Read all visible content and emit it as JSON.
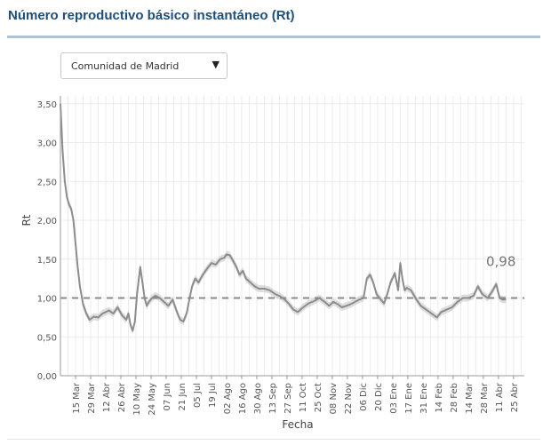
{
  "header": {
    "title": "Número reproductivo básico instantáneo (Rt)"
  },
  "region_select": {
    "selected": "Comunidad de Madrid",
    "arrow_icon": "triangle-down-icon"
  },
  "colors": {
    "title": "#1f4e79",
    "line": "#8c8c8c",
    "band": "#d0d0d0",
    "reference": "#8a8a8a",
    "grid": "#ececec"
  },
  "chart_data": {
    "type": "line",
    "xlabel": "Fecha",
    "ylabel": "Rt",
    "x_range": [
      "2020-03-01",
      "2021-05-05"
    ],
    "ylim": [
      0,
      3.6
    ],
    "yticks": [
      0,
      0.5,
      1,
      1.5,
      2,
      2.5,
      3,
      3.5
    ],
    "ytick_labels": [
      "0,00",
      "0,50",
      "1,00",
      "1,50",
      "2,00",
      "2,50",
      "3,00",
      "3,50"
    ],
    "xticks": [
      "2020-03-15",
      "2020-03-29",
      "2020-04-12",
      "2020-04-26",
      "2020-05-10",
      "2020-05-24",
      "2020-06-07",
      "2020-06-21",
      "2020-07-05",
      "2020-07-19",
      "2020-08-02",
      "2020-08-16",
      "2020-08-30",
      "2020-09-13",
      "2020-09-27",
      "2020-10-11",
      "2020-10-25",
      "2020-11-08",
      "2020-11-22",
      "2020-12-06",
      "2020-12-20",
      "2021-01-03",
      "2021-01-17",
      "2021-01-31",
      "2021-02-14",
      "2021-02-28",
      "2021-03-14",
      "2021-03-28",
      "2021-04-11",
      "2021-04-25"
    ],
    "xtick_labels": [
      "15 Mar",
      "29 Mar",
      "12 Abr",
      "26 Abr",
      "10 May",
      "24 May",
      "07 Jun",
      "21 Jun",
      "05 Jul",
      "19 Jul",
      "02 Ago",
      "16 Ago",
      "30 Ago",
      "13 Sep",
      "27 Sep",
      "11 Oct",
      "25 Oct",
      "08 Nov",
      "22 Nov",
      "06 Dic",
      "20 Dic",
      "03 Ene",
      "17 Ene",
      "31 Ene",
      "14 Feb",
      "28 Feb",
      "14 Mar",
      "28 Mar",
      "11 Abr",
      "25 Abr"
    ],
    "reference_line": 1.0,
    "grid": true,
    "last_value_label": "0,98",
    "series": [
      {
        "x": [
          "2020-03-01",
          "2020-03-03",
          "2020-03-05",
          "2020-03-07",
          "2020-03-09",
          "2020-03-11",
          "2020-03-13",
          "2020-03-15",
          "2020-03-17",
          "2020-03-19",
          "2020-03-22",
          "2020-03-25",
          "2020-03-28",
          "2020-04-01",
          "2020-04-05",
          "2020-04-09",
          "2020-04-12",
          "2020-04-15",
          "2020-04-19",
          "2020-04-23",
          "2020-04-27",
          "2020-05-01",
          "2020-05-03",
          "2020-05-05",
          "2020-05-07",
          "2020-05-09",
          "2020-05-11",
          "2020-05-14",
          "2020-05-16",
          "2020-05-18",
          "2020-05-20",
          "2020-05-22",
          "2020-05-25",
          "2020-05-28",
          "2020-06-01",
          "2020-06-05",
          "2020-06-09",
          "2020-06-13",
          "2020-06-17",
          "2020-06-20",
          "2020-06-23",
          "2020-06-26",
          "2020-06-28",
          "2020-07-01",
          "2020-07-04",
          "2020-07-07",
          "2020-07-11",
          "2020-07-15",
          "2020-07-19",
          "2020-07-23",
          "2020-07-27",
          "2020-07-31",
          "2020-08-02",
          "2020-08-05",
          "2020-08-08",
          "2020-08-11",
          "2020-08-14",
          "2020-08-17",
          "2020-08-20",
          "2020-08-24",
          "2020-08-28",
          "2020-09-01",
          "2020-09-06",
          "2020-09-11",
          "2020-09-16",
          "2020-09-21",
          "2020-09-25",
          "2020-09-29",
          "2020-10-03",
          "2020-10-07",
          "2020-10-12",
          "2020-10-17",
          "2020-10-22",
          "2020-10-27",
          "2020-11-01",
          "2020-11-05",
          "2020-11-09",
          "2020-11-13",
          "2020-11-17",
          "2020-11-21",
          "2020-11-25",
          "2020-11-29",
          "2020-12-03",
          "2020-12-07",
          "2020-12-10",
          "2020-12-13",
          "2020-12-16",
          "2020-12-19",
          "2020-12-23",
          "2020-12-26",
          "2020-12-29",
          "2021-01-01",
          "2021-01-05",
          "2021-01-08",
          "2021-01-10",
          "2021-01-12",
          "2021-01-14",
          "2021-01-16",
          "2021-01-20",
          "2021-01-25",
          "2021-01-29",
          "2021-02-03",
          "2021-02-08",
          "2021-02-13",
          "2021-02-17",
          "2021-02-22",
          "2021-02-27",
          "2021-03-04",
          "2021-03-09",
          "2021-03-14",
          "2021-03-19",
          "2021-03-23",
          "2021-03-27",
          "2021-04-01",
          "2021-04-05",
          "2021-04-09",
          "2021-04-12",
          "2021-04-15",
          "2021-04-18"
        ],
        "values": [
          3.5,
          2.9,
          2.5,
          2.3,
          2.2,
          2.15,
          2.0,
          1.7,
          1.4,
          1.15,
          0.92,
          0.8,
          0.72,
          0.76,
          0.75,
          0.8,
          0.82,
          0.84,
          0.8,
          0.88,
          0.78,
          0.72,
          0.8,
          0.65,
          0.58,
          0.7,
          1.05,
          1.4,
          1.2,
          1.0,
          0.9,
          0.95,
          1.0,
          1.03,
          1.0,
          0.95,
          0.9,
          0.98,
          0.82,
          0.72,
          0.7,
          0.8,
          0.95,
          1.15,
          1.25,
          1.2,
          1.3,
          1.38,
          1.45,
          1.43,
          1.5,
          1.52,
          1.56,
          1.55,
          1.48,
          1.4,
          1.3,
          1.35,
          1.25,
          1.2,
          1.15,
          1.12,
          1.12,
          1.1,
          1.05,
          1.02,
          0.98,
          0.92,
          0.85,
          0.82,
          0.88,
          0.93,
          0.96,
          1.0,
          0.95,
          0.9,
          0.95,
          0.92,
          0.88,
          0.9,
          0.92,
          0.95,
          0.98,
          1.0,
          1.25,
          1.3,
          1.2,
          1.05,
          0.98,
          0.93,
          1.05,
          1.2,
          1.32,
          1.1,
          1.45,
          1.25,
          1.1,
          1.13,
          1.1,
          0.98,
          0.9,
          0.85,
          0.8,
          0.75,
          0.82,
          0.85,
          0.88,
          0.95,
          1.0,
          1.0,
          1.03,
          1.15,
          1.05,
          1.0,
          1.08,
          1.18,
          1.0,
          0.98,
          0.98
        ]
      }
    ]
  }
}
